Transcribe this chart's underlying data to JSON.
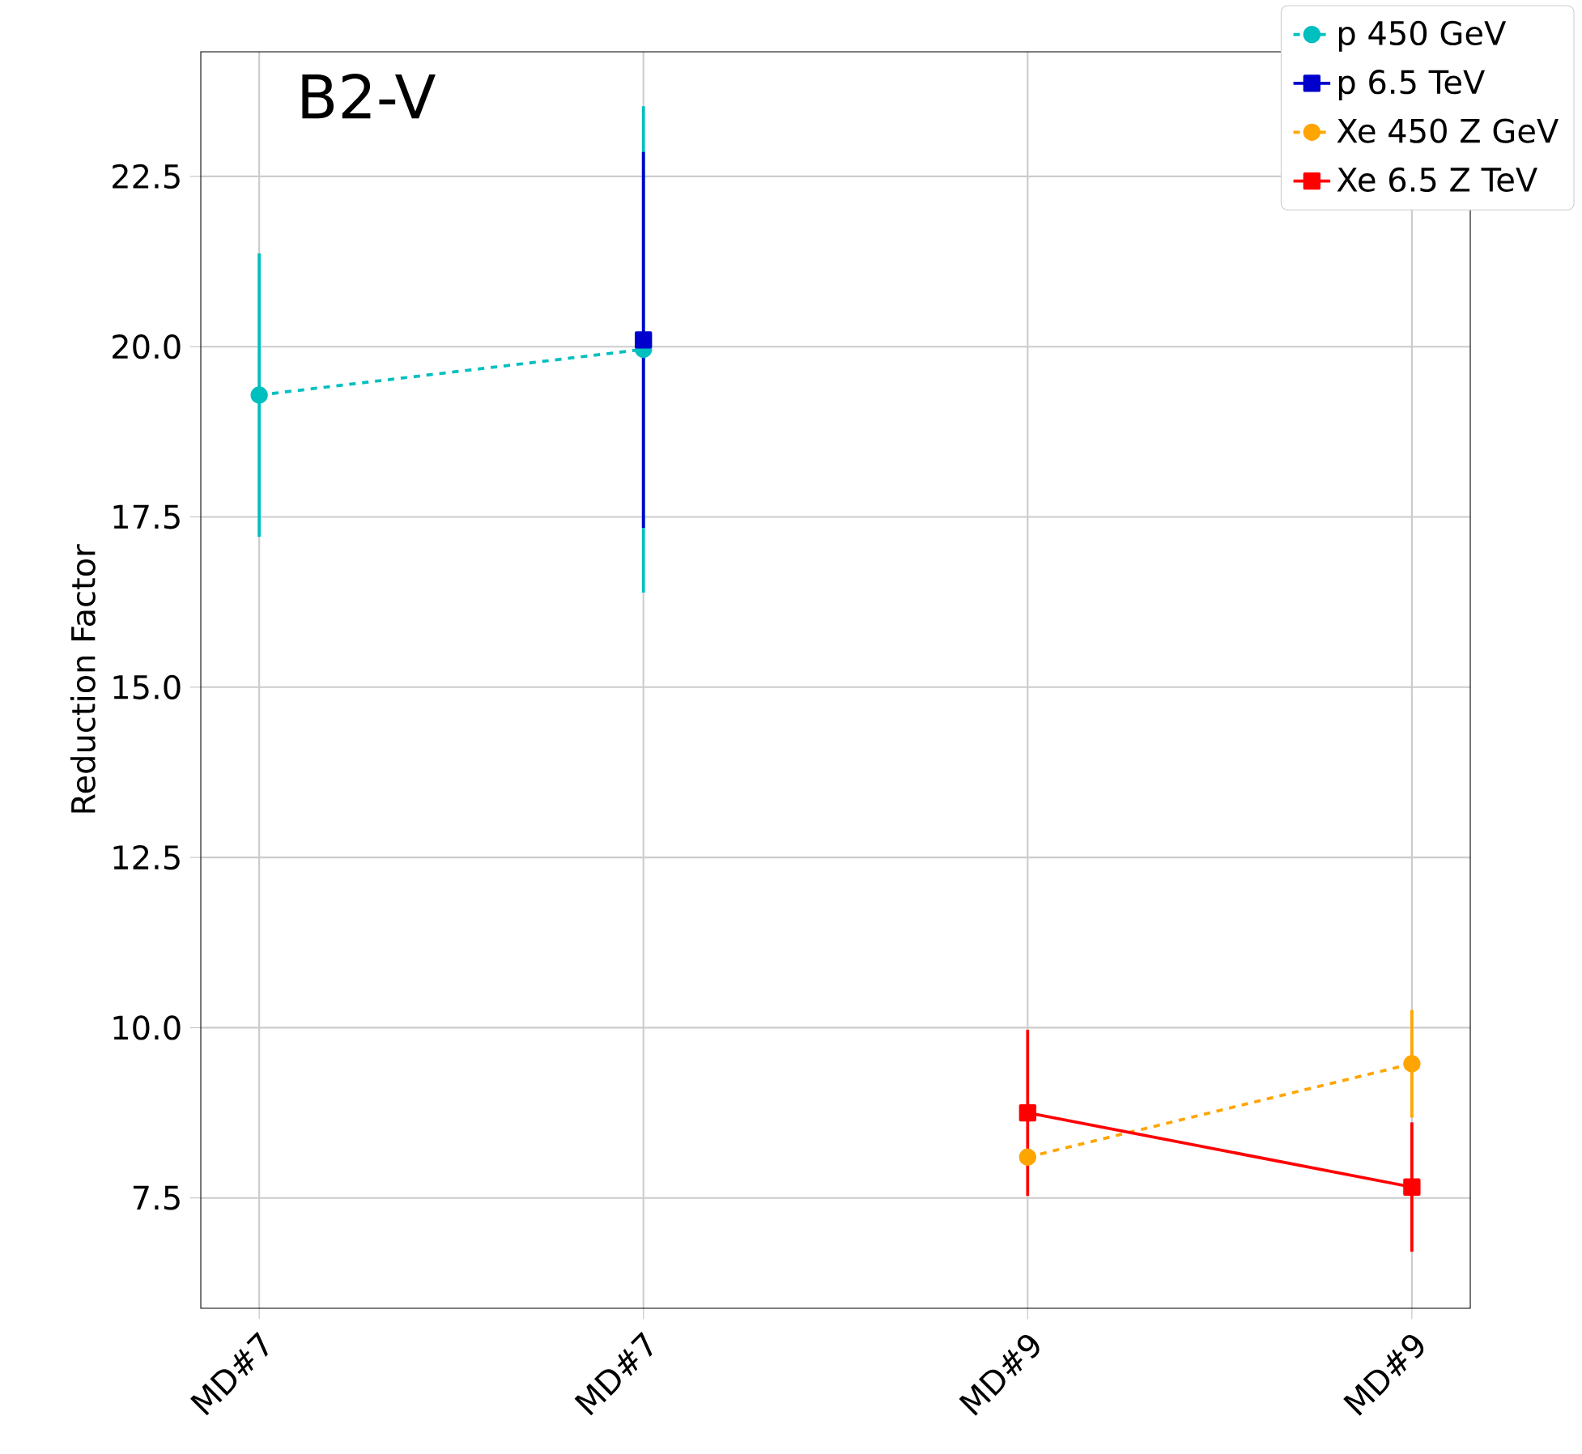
{
  "chart_data": {
    "type": "line",
    "categories": [
      "MD#7",
      "MD#7",
      "MD#9",
      "MD#9"
    ],
    "ylabel": "Reduction Factor",
    "annotations": [
      "B2-V"
    ],
    "ylim": [
      5.88,
      24.33
    ],
    "yticks": [
      7.5,
      {
        "value": 10,
        "label": "10.0"
      },
      12.5,
      {
        "value": 15,
        "label": "15.0"
      },
      17.5,
      {
        "value": 20,
        "label": "20.0"
      },
      22.5
    ],
    "grid": true,
    "legend": "top right",
    "series": [
      {
        "name": "p 450 GeV",
        "color": "#00bfbf",
        "line_style": "dashed",
        "marker": "circle",
        "values": [
          19.29,
          19.96,
          null,
          null
        ],
        "errors": [
          2.08,
          3.57,
          null,
          null
        ]
      },
      {
        "name": "p 6.5 TeV",
        "color": "#0000cd",
        "line_style": "solid",
        "marker": "square",
        "values": [
          null,
          20.1,
          null,
          null
        ],
        "errors": [
          null,
          2.76,
          null,
          null
        ]
      },
      {
        "name": "Xe 450 Z GeV",
        "color": "#ffa500",
        "line_style": "dashed",
        "marker": "circle",
        "values": [
          null,
          null,
          8.1,
          9.47
        ],
        "errors": [
          null,
          null,
          null,
          0.79
        ]
      },
      {
        "name": "Xe 6.5 Z TeV",
        "color": "#ff0000",
        "line_style": "solid",
        "marker": "square",
        "values": [
          null,
          null,
          8.75,
          7.66
        ],
        "errors": [
          null,
          null,
          1.22,
          0.95
        ]
      }
    ]
  }
}
